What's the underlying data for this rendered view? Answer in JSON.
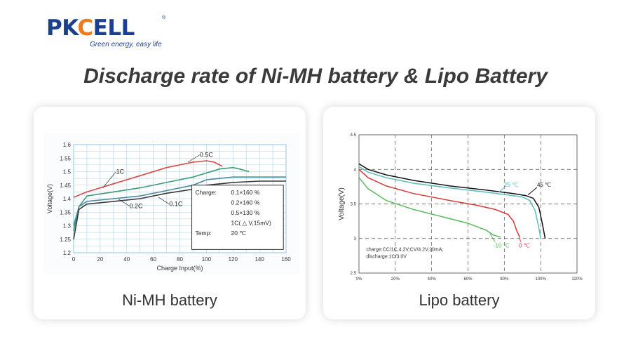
{
  "logo": {
    "brand": "PKCELL",
    "slogan": "Green energy, easy life",
    "reg_mark": "®"
  },
  "title": "Discharge rate of Ni-MH battery & Lipo Battery",
  "cards": [
    {
      "label": "Ni-MH battery"
    },
    {
      "label": "Lipo battery"
    }
  ],
  "colors": {
    "brand_blue": "#1d3f8f",
    "brand_orange": "#f07a1a"
  },
  "chart_data": [
    {
      "type": "line",
      "title": "",
      "xlabel": "Charge Input(%)",
      "ylabel": "Voltage(V)",
      "xlim": [
        0,
        160
      ],
      "ylim": [
        1.2,
        1.6
      ],
      "x_ticks": [
        "0",
        "20",
        "40",
        "60",
        "80",
        "100",
        "120",
        "140",
        "160"
      ],
      "y_ticks": [
        "1.2",
        "1.25",
        "1.3",
        "1.35",
        "1.4",
        "1.45",
        "1.5",
        "1.55",
        "1.6"
      ],
      "grid": true,
      "series": [
        {
          "name": "1C",
          "color": "#d84a45",
          "x": [
            0,
            10,
            30,
            50,
            70,
            90,
            100,
            106,
            112
          ],
          "y": [
            1.405,
            1.425,
            1.455,
            1.485,
            1.515,
            1.535,
            1.54,
            1.535,
            1.52
          ]
        },
        {
          "name": "0.5C",
          "color": "#3c9b7a",
          "x": [
            0,
            4,
            10,
            30,
            50,
            70,
            90,
            110,
            120,
            125,
            132
          ],
          "y": [
            1.28,
            1.37,
            1.41,
            1.425,
            1.44,
            1.46,
            1.48,
            1.51,
            1.515,
            1.51,
            1.5
          ]
        },
        {
          "name": "0.2C",
          "color": "#4a8aa0",
          "x": [
            0,
            4,
            10,
            30,
            50,
            70,
            90,
            100,
            120,
            140,
            160
          ],
          "y": [
            1.3,
            1.37,
            1.39,
            1.4,
            1.41,
            1.43,
            1.45,
            1.47,
            1.48,
            1.48,
            1.48
          ]
        },
        {
          "name": "0.1C",
          "color": "#3a3a3a",
          "x": [
            0,
            4,
            10,
            30,
            50,
            70,
            90,
            100,
            120,
            140,
            160
          ],
          "y": [
            1.25,
            1.36,
            1.38,
            1.39,
            1.4,
            1.42,
            1.435,
            1.45,
            1.46,
            1.465,
            1.465
          ]
        }
      ],
      "annotations": [
        {
          "text": "1C",
          "x": 32,
          "y": 1.5
        },
        {
          "text": "0.5C",
          "x": 95,
          "y": 1.562
        },
        {
          "text": "0.2C",
          "x": 42,
          "y": 1.373
        },
        {
          "text": "0.1C",
          "x": 72,
          "y": 1.38
        }
      ],
      "info_box": {
        "rows": [
          {
            "key": "Charge:",
            "value": "0.1×160 %"
          },
          {
            "key": "",
            "value": "0.2×160 %"
          },
          {
            "key": "",
            "value": "0.5×130 %"
          },
          {
            "key": "",
            "value": "1C( △ V,15mV)"
          },
          {
            "key": "Temp:",
            "value": "20 ℃"
          }
        ]
      }
    },
    {
      "type": "line",
      "title": "",
      "xlabel": "",
      "ylabel": "Voltage(V)",
      "xlim": [
        0,
        120
      ],
      "ylim": [
        2.5,
        4.5
      ],
      "x_ticks": [
        "0%",
        "20%",
        "40%",
        "60%",
        "80%",
        "100%",
        "120%"
      ],
      "y_ticks": [
        "2.5",
        "3",
        "3.5",
        "4",
        "4.5"
      ],
      "grid": true,
      "series": [
        {
          "name": "45 ℃",
          "color": "#111111",
          "x": [
            0,
            5,
            15,
            30,
            50,
            70,
            85,
            92,
            96,
            99,
            101,
            102.5
          ],
          "y": [
            4.08,
            4.0,
            3.92,
            3.84,
            3.76,
            3.7,
            3.65,
            3.62,
            3.58,
            3.45,
            3.2,
            3.0
          ]
        },
        {
          "name": "25 ℃",
          "color": "#5bbcbc",
          "x": [
            0,
            5,
            15,
            30,
            50,
            70,
            82,
            90,
            94,
            97,
            99,
            100
          ],
          "y": [
            4.04,
            3.96,
            3.88,
            3.8,
            3.73,
            3.67,
            3.63,
            3.6,
            3.55,
            3.4,
            3.15,
            3.0
          ]
        },
        {
          "name": "0 ℃",
          "color": "#d83a3a",
          "x": [
            0,
            5,
            15,
            30,
            50,
            65,
            75,
            82,
            85,
            87,
            88.5
          ],
          "y": [
            4.0,
            3.88,
            3.76,
            3.65,
            3.55,
            3.48,
            3.42,
            3.35,
            3.25,
            3.1,
            3.02
          ]
        },
        {
          "name": "-10 ℃",
          "color": "#5bb85b",
          "x": [
            0,
            5,
            15,
            30,
            45,
            60,
            70,
            74,
            78
          ],
          "y": [
            3.88,
            3.72,
            3.55,
            3.42,
            3.32,
            3.22,
            3.12,
            3.05,
            3.02
          ]
        }
      ],
      "annotations": [
        {
          "text": "45 ℃",
          "x": 98,
          "y": 3.78
        },
        {
          "text": "25 ℃",
          "x": 80,
          "y": 3.78
        },
        {
          "text": "0 ℃",
          "x": 88,
          "y": 2.9
        },
        {
          "text": "-10 ℃",
          "x": 74,
          "y": 2.9
        }
      ],
      "conditions": [
        "charge:CC/1C,4.2V;CV/4.2V,20mA;",
        "discharge:1C/3.0V"
      ]
    }
  ]
}
